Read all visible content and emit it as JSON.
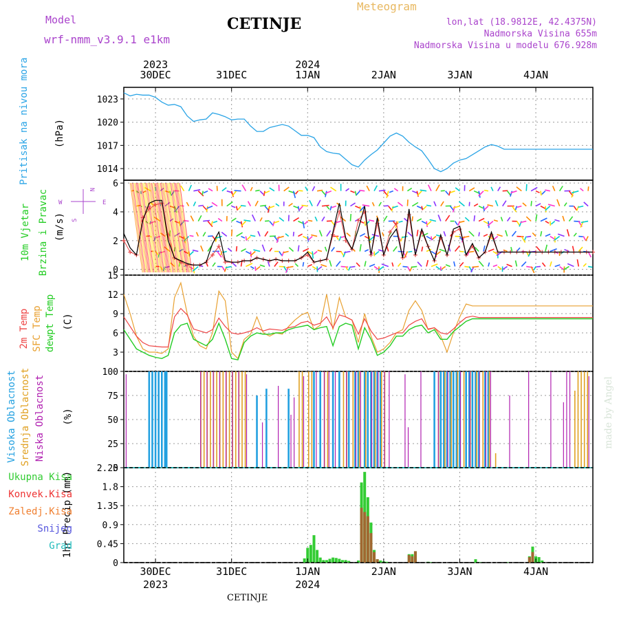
{
  "header": {
    "model_label": "Model",
    "model_name": "wrf-nmm_v3.9.1 e1km",
    "station": "CETINJE",
    "meteogram": "Meteogram",
    "lonlat": "lon,lat (18.9812E, 42.4375N)",
    "altitude": "Nadmorska Visina 655m",
    "altitude_model": "Nadmorska Visina u modelu 676.928m"
  },
  "footer_station": "CETINJE",
  "watermark": "made by Angel",
  "colors": {
    "pressure": "#2aa4e6",
    "wind_speed": "#000000",
    "gust": "#e84a4a",
    "t2m": "#ee4444",
    "tsfc": "#e8a030",
    "dewpt": "#22cc22",
    "high_cloud": "#22a0e0",
    "mid_cloud": "#e0a020",
    "low_cloud": "#b020b0",
    "precip_total": "#33cc33",
    "precip_conv": "#ee3333",
    "precip_frozen": "#a06830",
    "snow": "#5555dd",
    "grad": "#22bbbb",
    "meteogram_title": "#e8b860",
    "model_text": "#aa44cc"
  },
  "time_axis": {
    "ticks": [
      "30DEC",
      "31DEC",
      "1JAN",
      "2JAN",
      "3JAN",
      "4JAN"
    ],
    "years": [
      {
        "label": "2023",
        "at": 0
      },
      {
        "label": "2024",
        "at": 2
      }
    ],
    "start_hour": -10,
    "end_hour": 138
  },
  "chart_data": [
    {
      "type": "line",
      "name": "pressure",
      "ylabel_main": "Pritisak na nivou mora",
      "ylabel_unit": "(hPa)",
      "yticks": [
        "1014",
        "1017",
        "1020",
        "1023"
      ],
      "ylim": [
        1012.5,
        1024.5
      ],
      "x": [
        -10,
        -8,
        -6,
        -4,
        -2,
        0,
        2,
        4,
        6,
        8,
        10,
        12,
        14,
        16,
        18,
        20,
        22,
        24,
        26,
        28,
        30,
        32,
        34,
        36,
        38,
        40,
        42,
        44,
        46,
        48,
        50,
        52,
        54,
        56,
        58,
        60,
        62,
        64,
        66,
        68,
        70,
        72,
        74,
        76,
        78,
        80,
        82,
        84,
        86,
        88,
        90,
        92,
        94,
        96,
        98,
        100,
        102,
        104,
        106,
        108,
        110,
        112,
        114,
        116,
        118,
        120,
        122,
        124,
        126,
        128,
        130,
        132,
        134,
        136,
        138
      ],
      "y": [
        1023.8,
        1023.4,
        1023.6,
        1023.5,
        1023.5,
        1023.2,
        1022.6,
        1022.2,
        1022.3,
        1022.0,
        1020.8,
        1020.1,
        1020.3,
        1020.4,
        1021.2,
        1021.0,
        1020.7,
        1020.3,
        1020.4,
        1020.4,
        1019.5,
        1018.8,
        1018.8,
        1019.3,
        1019.5,
        1019.7,
        1019.5,
        1018.9,
        1018.3,
        1018.3,
        1018.0,
        1016.8,
        1016.2,
        1016.0,
        1015.9,
        1015.2,
        1014.5,
        1014.2,
        1015.1,
        1015.8,
        1016.4,
        1017.3,
        1018.2,
        1018.6,
        1018.2,
        1017.4,
        1016.8,
        1016.3,
        1015.2,
        1014.0,
        1013.6,
        1014.0,
        1014.7,
        1015.1,
        1015.3,
        1015.8,
        1016.3,
        1016.8,
        1017.1,
        1016.9,
        1016.5,
        1016.5,
        1016.5,
        1016.5,
        1016.5,
        1016.5,
        1016.5,
        1016.5,
        1016.5,
        1016.5,
        1016.5,
        1016.5,
        1016.5,
        1016.5,
        1016.5
      ]
    },
    {
      "type": "line",
      "name": "wind",
      "ylabel_main": "10m Vjetar",
      "ylabel_main2": "Brzina i Pravac",
      "ylabel_unit": "(m/s)",
      "compass": {
        "n": "N",
        "s": "S",
        "e": "E",
        "w": "W"
      },
      "yticks": [
        "0",
        "2",
        "4",
        "6"
      ],
      "ylim": [
        -0.4,
        6.2
      ],
      "x": [
        -10,
        -8,
        -6,
        -4,
        -2,
        0,
        2,
        4,
        6,
        8,
        10,
        12,
        14,
        16,
        18,
        20,
        22,
        24,
        26,
        28,
        30,
        32,
        34,
        36,
        38,
        40,
        42,
        44,
        46,
        48,
        50,
        52,
        54,
        56,
        58,
        60,
        62,
        64,
        66,
        68,
        70,
        72,
        74,
        76,
        78,
        80,
        82,
        84,
        86,
        88,
        90,
        92,
        94,
        96,
        98,
        100,
        102,
        104,
        106,
        108,
        110,
        112,
        114,
        116,
        118,
        120,
        122,
        124,
        126,
        128,
        130,
        132,
        134,
        136,
        138
      ],
      "y": [
        2.5,
        1.5,
        1.0,
        3.4,
        4.6,
        4.8,
        4.8,
        2.0,
        0.8,
        0.6,
        0.4,
        0.3,
        0.3,
        0.5,
        1.8,
        2.6,
        0.6,
        0.5,
        0.5,
        0.6,
        0.6,
        0.8,
        0.7,
        0.6,
        0.7,
        0.6,
        0.6,
        0.6,
        0.8,
        1.2,
        0.5,
        0.6,
        0.7,
        2.6,
        4.6,
        2.2,
        1.4,
        2.8,
        4.4,
        1.0,
        3.6,
        1.0,
        2.2,
        2.8,
        0.8,
        4.2,
        1.0,
        2.8,
        1.6,
        0.6,
        2.4,
        1.0,
        2.8,
        3.0,
        1.0,
        1.8,
        0.8,
        1.2,
        2.6,
        1.2,
        1.2,
        1.2,
        1.2,
        1.2,
        1.2,
        1.2,
        1.2,
        1.2,
        1.2,
        1.2,
        1.2,
        1.2,
        1.2,
        1.2,
        1.2
      ],
      "gust_y": [
        2.0,
        1.2,
        1.0,
        3.6,
        4.2,
        4.5,
        4.6,
        2.4,
        0.8,
        0.5,
        0.3,
        0.3,
        0.3,
        0.5,
        1.0,
        1.6,
        0.5,
        0.5,
        0.5,
        0.6,
        0.6,
        0.8,
        0.7,
        0.6,
        0.7,
        0.6,
        0.6,
        0.6,
        0.8,
        1.0,
        0.5,
        0.6,
        0.7,
        2.4,
        4.0,
        2.0,
        1.4,
        3.4,
        4.0,
        1.0,
        3.2,
        1.0,
        2.6,
        3.2,
        0.8,
        3.8,
        1.0,
        2.6,
        1.6,
        0.6,
        2.2,
        1.0,
        2.6,
        2.8,
        1.0,
        1.6,
        0.8,
        1.2,
        2.4,
        1.2,
        1.2,
        1.2,
        1.2,
        1.2,
        1.2,
        1.2,
        1.2,
        1.2,
        1.2,
        1.2,
        1.2,
        1.2,
        1.2,
        1.2,
        1.2
      ]
    },
    {
      "type": "line",
      "name": "temperature",
      "ylabel_series": [
        "2m Temp",
        "SFC Temp",
        "dewpt Temp"
      ],
      "ylabel_unit": "(C)",
      "yticks": [
        "3",
        "6",
        "9",
        "12",
        "15"
      ],
      "ylim": [
        0,
        15
      ],
      "x": [
        -10,
        -8,
        -6,
        -4,
        -2,
        0,
        2,
        4,
        6,
        8,
        10,
        12,
        14,
        16,
        18,
        20,
        22,
        24,
        26,
        28,
        30,
        32,
        34,
        36,
        38,
        40,
        42,
        44,
        46,
        48,
        50,
        52,
        54,
        56,
        58,
        60,
        62,
        64,
        66,
        68,
        70,
        72,
        74,
        76,
        78,
        80,
        82,
        84,
        86,
        88,
        90,
        92,
        94,
        96,
        98,
        100,
        102,
        104,
        106,
        108,
        110,
        112,
        114,
        116,
        118,
        120,
        122,
        124,
        126,
        128,
        130,
        132,
        134,
        136,
        138
      ],
      "t2m": [
        8.5,
        7.0,
        5.5,
        4.5,
        4.0,
        3.9,
        3.8,
        3.8,
        8.5,
        9.8,
        8.8,
        6.6,
        6.3,
        6.0,
        6.5,
        8.3,
        7.0,
        6.0,
        5.8,
        6.0,
        6.3,
        6.8,
        6.3,
        6.6,
        6.5,
        6.4,
        6.8,
        7.0,
        7.6,
        7.8,
        7.2,
        7.5,
        8.5,
        6.8,
        8.8,
        8.5,
        8.0,
        5.8,
        8.2,
        6.3,
        5.0,
        5.2,
        5.6,
        6.0,
        6.0,
        7.2,
        7.8,
        8.2,
        6.6,
        6.8,
        6.0,
        5.8,
        6.6,
        7.6,
        8.4,
        8.6,
        8.4,
        8.4,
        8.4,
        8.4,
        8.4,
        8.4,
        8.4,
        8.4,
        8.4,
        8.4,
        8.4,
        8.4,
        8.4,
        8.4,
        8.4,
        8.4,
        8.4,
        8.4,
        8.4
      ],
      "tsfc": [
        12.0,
        9.0,
        5.5,
        3.5,
        3.0,
        3.0,
        2.8,
        3.5,
        11.5,
        13.8,
        9.0,
        5.5,
        4.0,
        3.5,
        6.0,
        12.5,
        11.0,
        3.0,
        2.0,
        5.0,
        5.8,
        8.5,
        6.0,
        5.5,
        6.0,
        5.8,
        7.0,
        8.0,
        8.8,
        9.2,
        6.5,
        7.2,
        12.0,
        6.5,
        11.5,
        8.5,
        8.0,
        4.5,
        9.0,
        5.5,
        3.0,
        3.5,
        4.5,
        6.0,
        6.5,
        9.5,
        11.0,
        9.5,
        6.5,
        6.8,
        5.5,
        3.0,
        6.0,
        8.5,
        10.5,
        10.2,
        10.2,
        10.2,
        10.2,
        10.2,
        10.2,
        10.2,
        10.2,
        10.2,
        10.2,
        10.2,
        10.2,
        10.2,
        10.2,
        10.2,
        10.2,
        10.2,
        10.2,
        10.2,
        10.2
      ],
      "dewpt": [
        6.5,
        5.0,
        3.5,
        3.0,
        2.5,
        2.2,
        2.0,
        2.5,
        6.0,
        7.2,
        7.5,
        5.0,
        4.5,
        4.0,
        5.0,
        7.5,
        5.0,
        2.0,
        1.8,
        4.5,
        5.5,
        6.0,
        5.8,
        5.8,
        6.0,
        6.0,
        6.5,
        6.8,
        7.0,
        7.2,
        6.5,
        6.8,
        7.0,
        4.0,
        7.0,
        7.5,
        7.2,
        3.5,
        6.8,
        5.0,
        2.5,
        3.0,
        4.0,
        5.5,
        5.5,
        6.5,
        7.0,
        7.2,
        6.0,
        6.5,
        5.0,
        5.0,
        6.2,
        7.0,
        7.8,
        8.2,
        8.2,
        8.2,
        8.2,
        8.2,
        8.2,
        8.2,
        8.2,
        8.2,
        8.2,
        8.2,
        8.2,
        8.2,
        8.2,
        8.2,
        8.2,
        8.2,
        8.2,
        8.2,
        8.2
      ]
    },
    {
      "type": "bar",
      "name": "clouds",
      "ylabel_series": [
        "Visoka Oblacnost",
        "Srednja Oblacnost",
        "Niska Oblacnost"
      ],
      "ylabel_unit": "(%)",
      "yticks": [
        "0",
        "25",
        "50",
        "75",
        "100"
      ],
      "ylim": [
        0,
        100
      ],
      "high_hours": [
        -2,
        -1,
        0,
        1,
        2,
        3,
        3.5,
        32,
        35,
        42,
        50,
        52,
        56,
        58,
        61,
        63,
        64,
        66,
        67,
        68,
        69,
        70,
        71,
        88,
        90,
        91,
        92,
        93,
        94,
        95,
        96,
        98,
        99,
        100,
        101,
        102,
        104,
        105
      ],
      "high_values": [
        100,
        100,
        100,
        100,
        100,
        100,
        100,
        75,
        82,
        82,
        100,
        100,
        100,
        100,
        100,
        100,
        100,
        100,
        100,
        100,
        100,
        100,
        100,
        100,
        100,
        100,
        100,
        100,
        100,
        100,
        100,
        100,
        100,
        100,
        100,
        100,
        100,
        100
      ],
      "mid_hours": [
        14,
        15,
        16,
        17,
        18,
        19,
        20,
        21,
        22,
        23,
        24,
        25,
        26,
        27,
        28,
        45,
        46,
        48,
        49,
        53,
        54,
        59,
        60,
        62,
        64,
        66,
        69,
        71,
        72,
        89,
        91,
        93,
        95,
        97,
        99,
        101,
        103,
        105,
        107,
        132,
        133,
        134,
        135,
        136
      ],
      "mid_values": [
        100,
        100,
        100,
        100,
        100,
        100,
        100,
        100,
        100,
        100,
        100,
        100,
        100,
        100,
        100,
        100,
        100,
        100,
        100,
        100,
        100,
        100,
        100,
        100,
        100,
        100,
        100,
        100,
        100,
        100,
        100,
        100,
        100,
        100,
        100,
        100,
        100,
        100,
        15,
        80,
        100,
        100,
        100,
        100
      ],
      "low_hours": [
        -9,
        14.5,
        16.5,
        18.5,
        20.5,
        22.5,
        24.5,
        26.5,
        29,
        34,
        39,
        43,
        44,
        47,
        51,
        53.5,
        55,
        57,
        60.5,
        63.5,
        65,
        68.5,
        70.5,
        72.5,
        74,
        79,
        80,
        84,
        89.5,
        92.5,
        96.5,
        99.5,
        102.5,
        104.5,
        106,
        112,
        118,
        125,
        129,
        130,
        131,
        137
      ],
      "low_values": [
        97,
        100,
        100,
        100,
        100,
        100,
        100,
        100,
        97,
        47,
        85,
        55,
        73,
        95,
        100,
        100,
        100,
        100,
        100,
        100,
        100,
        100,
        100,
        100,
        100,
        97,
        42,
        100,
        100,
        100,
        100,
        100,
        100,
        100,
        100,
        75,
        100,
        100,
        68,
        100,
        100,
        95
      ]
    },
    {
      "type": "bar",
      "name": "precipitation",
      "ylabel_series": [
        "Ukupna Kisa",
        "Konvek.Kisa",
        "Zaledj.Kisa",
        "Snijeg",
        "Grad"
      ],
      "ylabel_unit": "1hr Precip (mm)",
      "yticks": [
        "0",
        "0.45",
        "0.9",
        "1.35",
        "1.8",
        "2.25"
      ],
      "ylim": [
        0,
        2.25
      ],
      "hours": [
        47,
        48,
        49,
        50,
        51,
        52,
        53,
        54,
        55,
        56,
        57,
        58,
        59,
        60,
        61,
        64,
        65,
        66,
        67,
        68,
        69,
        70,
        71,
        72,
        73,
        80,
        81,
        82,
        86,
        87,
        101,
        102,
        103,
        111,
        118,
        119,
        120,
        121,
        122
      ],
      "total": [
        0.1,
        0.35,
        0.42,
        0.65,
        0.3,
        0.12,
        0.06,
        0.06,
        0.09,
        0.12,
        0.11,
        0.09,
        0.06,
        0.06,
        0.04,
        0.05,
        1.9,
        2.15,
        1.55,
        0.95,
        0.3,
        0.08,
        0.05,
        0.03,
        0.02,
        0.2,
        0.2,
        0.27,
        0.02,
        0.01,
        0.08,
        0.01,
        0.01,
        0.01,
        0.15,
        0.38,
        0.15,
        0.13,
        0.05
      ],
      "frozen": [
        0,
        0,
        0,
        0,
        0,
        0,
        0,
        0,
        0,
        0,
        0,
        0,
        0,
        0,
        0,
        0,
        1.3,
        1.2,
        1.1,
        0.7,
        0.25,
        0.08,
        0,
        0,
        0,
        0.18,
        0.15,
        0.27,
        0,
        0,
        0,
        0,
        0,
        0,
        0.13,
        0.25,
        0,
        0,
        0
      ]
    }
  ]
}
